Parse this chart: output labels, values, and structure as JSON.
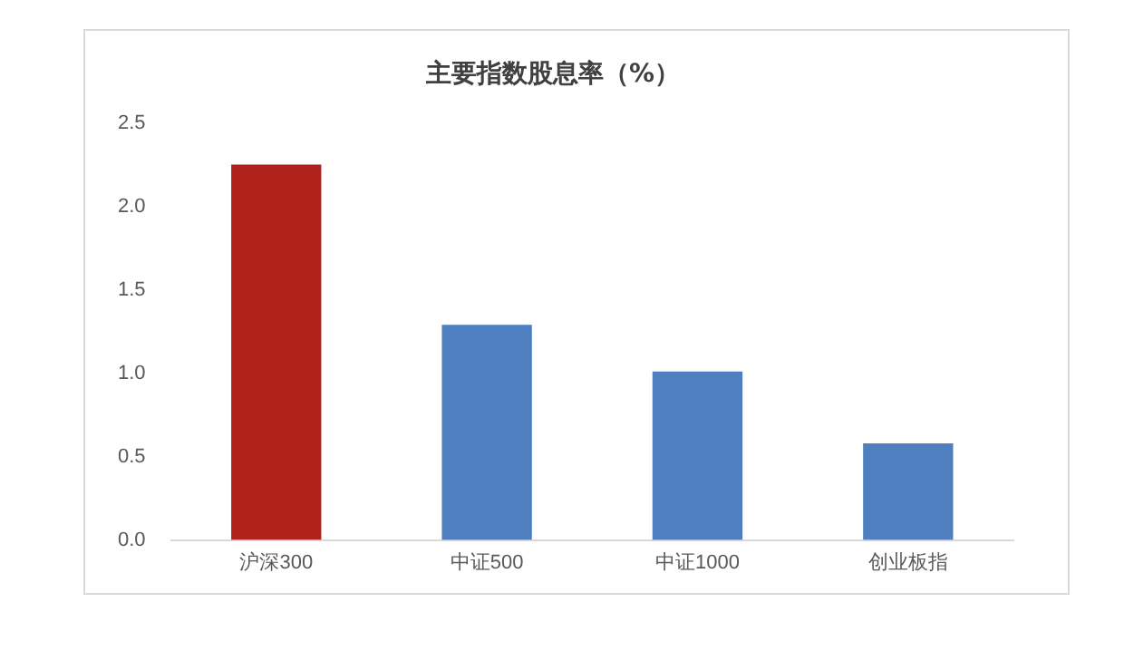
{
  "chart_data": {
    "type": "bar",
    "title": "主要指数股息率（%）",
    "categories": [
      "沪深300",
      "中证500",
      "中证1000",
      "创业板指"
    ],
    "values": [
      2.25,
      1.29,
      1.01,
      0.58
    ],
    "colors": [
      "#b0231c",
      "#4f7fbf",
      "#4f7fbf",
      "#4f7fbf"
    ],
    "ylim": [
      0,
      2.5
    ],
    "yticks": [
      {
        "value": 0,
        "label": "0.0"
      },
      {
        "value": 0.5,
        "label": "0.5"
      },
      {
        "value": 1,
        "label": "1.0"
      },
      {
        "value": 1.5,
        "label": "1.5"
      },
      {
        "value": 2,
        "label": "2.0"
      },
      {
        "value": 2.5,
        "label": "2.5"
      }
    ],
    "grid": false,
    "legend": false
  }
}
